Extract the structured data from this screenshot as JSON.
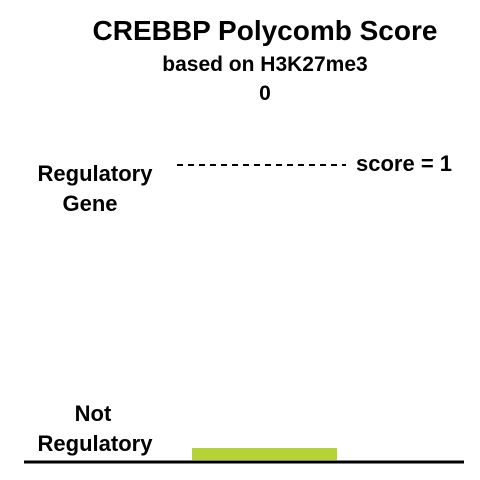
{
  "chart_data": {
    "type": "bar",
    "title": "CREBBP Polycomb Score",
    "subtitle": "based on H3K27me3",
    "value_label": "0",
    "categories": [
      "CREBBP"
    ],
    "values": [
      0
    ],
    "ylim": [
      0,
      1
    ],
    "reference_line": {
      "value": 1,
      "label": "score = 1",
      "style": "dashed"
    },
    "y_axis_labels": {
      "top": [
        "Regulatory",
        "Gene"
      ],
      "bottom": [
        "Not",
        "Regulatory"
      ]
    },
    "bar_color": "#b5d334",
    "grid": false,
    "legend": "none"
  }
}
